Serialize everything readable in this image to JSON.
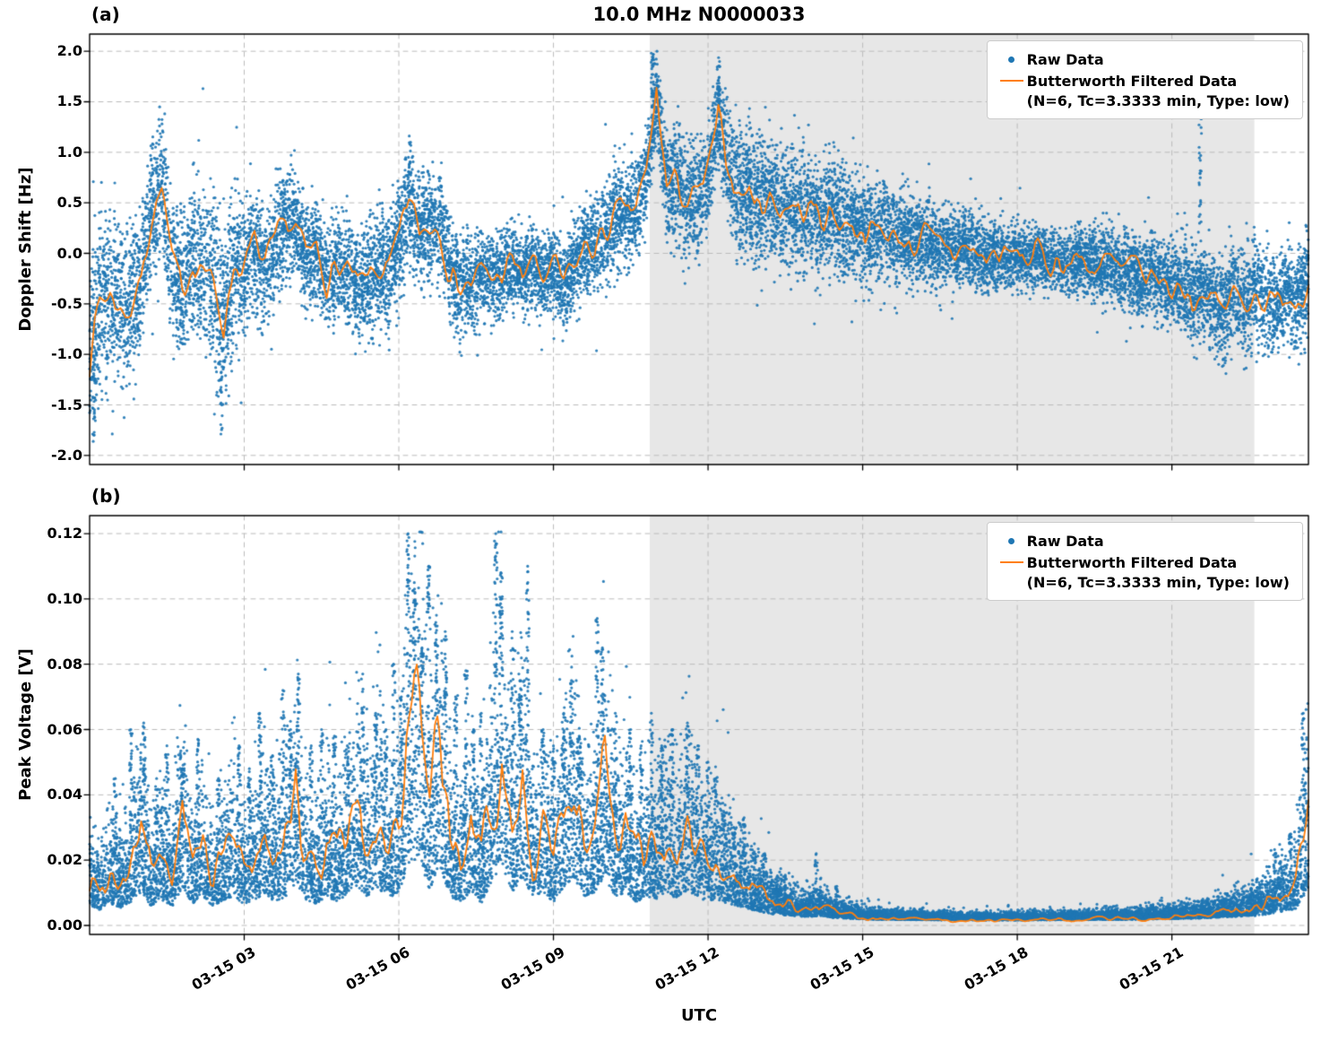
{
  "figure": {
    "title": "10.0 MHz N0000033",
    "panel_a_label": "(a)",
    "panel_b_label": "(b)",
    "colors": {
      "raw": "#1f77b4",
      "filtered": "#ff7f0e",
      "shade": "#e7e7e7",
      "grid": "#bbbbbb",
      "spine": "#000000"
    },
    "legend": {
      "raw_label": "Raw Data",
      "filtered_label": "Butterworth Filtered Data",
      "filtered_sublabel": "(N=6, Tc=3.3333 min, Type: low)"
    },
    "x_axis": {
      "label": "UTC",
      "range_hours": [
        0,
        23.65
      ],
      "tick_hours": [
        3,
        6,
        9,
        12,
        15,
        18,
        21
      ],
      "tick_labels": [
        "03-15 03",
        "03-15 06",
        "03-15 09",
        "03-15 12",
        "03-15 15",
        "03-15 18",
        "03-15 21"
      ]
    }
  },
  "chart_data": [
    {
      "type": "scatter",
      "panel": "a",
      "ylabel": "Doppler Shift [Hz]",
      "ylim": [
        -2.09,
        2.17
      ],
      "yticks": [
        2.0,
        1.5,
        1.0,
        0.5,
        0.0,
        -0.5,
        -1.0,
        -1.5,
        -2.0
      ],
      "ytick_labels": [
        "2.0",
        "1.5",
        "1.0",
        "0.5",
        "0.0",
        "-0.5",
        "-1.0",
        "-1.5",
        "-2.0"
      ],
      "shaded_region_hours": [
        10.87,
        22.6
      ],
      "filtered_series": {
        "name": "Butterworth Filtered Data",
        "x_start_hour": 0,
        "x_step_hour": 0.2,
        "values": [
          -0.95,
          -0.45,
          -0.4,
          -0.55,
          -0.55,
          -0.25,
          0.4,
          0.65,
          -0.1,
          -0.4,
          -0.05,
          -0.1,
          -0.35,
          -0.7,
          -0.1,
          -0.15,
          0.1,
          -0.15,
          0.05,
          0.3,
          0.25,
          -0.05,
          0.05,
          -0.25,
          -0.15,
          -0.2,
          -0.35,
          -0.25,
          -0.15,
          -0.2,
          0.1,
          0.55,
          0.2,
          0.3,
          0.3,
          -0.2,
          -0.3,
          -0.3,
          -0.2,
          -0.25,
          -0.2,
          -0.1,
          -0.2,
          -0.1,
          -0.25,
          -0.15,
          -0.3,
          -0.15,
          0.05,
          0.05,
          0.2,
          0.35,
          0.4,
          0.45,
          0.75,
          1.6,
          0.65,
          0.7,
          0.5,
          0.55,
          0.8,
          1.3,
          0.85,
          0.6,
          0.6,
          0.5,
          0.55,
          0.45,
          0.5,
          0.4,
          0.45,
          0.35,
          0.4,
          0.3,
          0.3,
          0.25,
          0.2,
          0.25,
          0.15,
          0.15,
          0.1,
          0.15,
          0.05,
          0.1,
          0.0,
          0.05,
          0.0,
          -0.05,
          0.0,
          -0.05,
          0.0,
          -0.05,
          0.0,
          -0.1,
          -0.05,
          -0.1,
          -0.05,
          -0.1,
          -0.15,
          -0.1,
          -0.2,
          -0.15,
          -0.25,
          -0.2,
          -0.3,
          -0.35,
          -0.3,
          -0.45,
          -0.35,
          -0.5,
          -0.55,
          -0.4,
          -0.5,
          -0.35,
          -0.45,
          -0.55,
          -0.35,
          -0.45,
          -0.3
        ]
      },
      "raw_series": {
        "name": "Raw Data",
        "clip": [
          -1.92,
          2.0
        ],
        "spread_profile": [
          [
            0,
            0.45
          ],
          [
            0.5,
            0.4
          ],
          [
            1,
            0.35
          ],
          [
            1.5,
            0.35
          ],
          [
            2,
            0.35
          ],
          [
            2.55,
            0.5
          ],
          [
            3,
            0.3
          ],
          [
            3.5,
            0.28
          ],
          [
            4,
            0.25
          ],
          [
            4.5,
            0.25
          ],
          [
            5,
            0.28
          ],
          [
            5.5,
            0.28
          ],
          [
            6,
            0.3
          ],
          [
            6.5,
            0.28
          ],
          [
            7,
            0.25
          ],
          [
            7.5,
            0.22
          ],
          [
            8,
            0.2
          ],
          [
            8.5,
            0.2
          ],
          [
            9,
            0.2
          ],
          [
            9.5,
            0.22
          ],
          [
            10,
            0.25
          ],
          [
            10.5,
            0.25
          ],
          [
            11,
            0.22
          ],
          [
            11.5,
            0.3
          ],
          [
            12.2,
            0.25
          ],
          [
            12.8,
            0.3
          ],
          [
            13.5,
            0.3
          ],
          [
            14,
            0.3
          ],
          [
            15,
            0.25
          ],
          [
            16,
            0.22
          ],
          [
            17,
            0.18
          ],
          [
            18,
            0.15
          ],
          [
            19,
            0.15
          ],
          [
            20,
            0.18
          ],
          [
            21,
            0.2
          ],
          [
            21.8,
            0.25
          ],
          [
            22.3,
            0.25
          ],
          [
            23,
            0.22
          ],
          [
            23.65,
            0.25
          ]
        ],
        "outlier_streaks": [
          [
            0.08,
            -1.9,
            -1.0
          ],
          [
            2.55,
            -1.78,
            -0.85
          ],
          [
            10.92,
            1.55,
            2.0
          ],
          [
            12.2,
            1.45,
            1.9
          ],
          [
            21.55,
            0.25,
            1.35
          ]
        ]
      }
    },
    {
      "type": "scatter",
      "panel": "b",
      "ylabel": "Peak Voltage [V]",
      "ylim": [
        -0.00275,
        0.1255
      ],
      "yticks": [
        0.12,
        0.1,
        0.08,
        0.06,
        0.04,
        0.02,
        0.0
      ],
      "ytick_labels": [
        "0.12",
        "0.10",
        "0.08",
        "0.06",
        "0.04",
        "0.02",
        "0.00"
      ],
      "shaded_region_hours": [
        10.87,
        22.6
      ],
      "filtered_series": {
        "name": "Butterworth Filtered Data",
        "x_start_hour": 0,
        "x_step_hour": 0.2,
        "values": [
          0.015,
          0.012,
          0.018,
          0.014,
          0.02,
          0.03,
          0.015,
          0.022,
          0.015,
          0.035,
          0.018,
          0.025,
          0.015,
          0.022,
          0.025,
          0.018,
          0.022,
          0.028,
          0.02,
          0.025,
          0.038,
          0.022,
          0.018,
          0.025,
          0.02,
          0.028,
          0.035,
          0.025,
          0.035,
          0.022,
          0.03,
          0.06,
          0.065,
          0.03,
          0.055,
          0.025,
          0.02,
          0.03,
          0.018,
          0.04,
          0.053,
          0.03,
          0.045,
          0.025,
          0.03,
          0.02,
          0.035,
          0.045,
          0.025,
          0.03,
          0.045,
          0.025,
          0.03,
          0.02,
          0.025,
          0.022,
          0.03,
          0.022,
          0.032,
          0.025,
          0.02,
          0.022,
          0.018,
          0.015,
          0.012,
          0.01,
          0.008,
          0.007,
          0.006,
          0.005,
          0.005,
          0.006,
          0.004,
          0.0035,
          0.003,
          0.0025,
          0.0022,
          0.002,
          0.002,
          0.0018,
          0.0018,
          0.0017,
          0.0016,
          0.0016,
          0.0015,
          0.0015,
          0.0015,
          0.0015,
          0.0015,
          0.0015,
          0.0015,
          0.0015,
          0.0016,
          0.0016,
          0.0017,
          0.0017,
          0.0018,
          0.0018,
          0.002,
          0.002,
          0.002,
          0.0022,
          0.0022,
          0.0025,
          0.0025,
          0.0028,
          0.003,
          0.003,
          0.0035,
          0.004,
          0.0045,
          0.005,
          0.0055,
          0.006,
          0.007,
          0.009,
          0.011,
          0.013,
          0.03
        ]
      },
      "raw_series": {
        "name": "Raw Data",
        "clip": [
          0.0005,
          0.1205
        ],
        "spike_events": [
          [
            0.5,
            0.045
          ],
          [
            0.8,
            0.06
          ],
          [
            1.05,
            0.062
          ],
          [
            1.3,
            0.045
          ],
          [
            1.5,
            0.055
          ],
          [
            1.8,
            0.048
          ],
          [
            2.1,
            0.057
          ],
          [
            2.5,
            0.045
          ],
          [
            2.9,
            0.055
          ],
          [
            3.1,
            0.048
          ],
          [
            3.3,
            0.065
          ],
          [
            3.55,
            0.052
          ],
          [
            3.75,
            0.072
          ],
          [
            3.9,
            0.06
          ],
          [
            4.05,
            0.077
          ],
          [
            4.3,
            0.055
          ],
          [
            4.5,
            0.06
          ],
          [
            4.75,
            0.058
          ],
          [
            5.0,
            0.055
          ],
          [
            5.3,
            0.077
          ],
          [
            5.55,
            0.065
          ],
          [
            5.75,
            0.06
          ],
          [
            5.9,
            0.08
          ],
          [
            6.05,
            0.07
          ],
          [
            6.18,
            0.12
          ],
          [
            6.3,
            0.105
          ],
          [
            6.45,
            0.085
          ],
          [
            6.58,
            0.11
          ],
          [
            6.73,
            0.095
          ],
          [
            6.9,
            0.09
          ],
          [
            7.1,
            0.07
          ],
          [
            7.3,
            0.078
          ],
          [
            7.45,
            0.06
          ],
          [
            7.6,
            0.065
          ],
          [
            7.88,
            0.12
          ],
          [
            7.98,
            0.108
          ],
          [
            8.2,
            0.09
          ],
          [
            8.35,
            0.075
          ],
          [
            8.5,
            0.11
          ],
          [
            8.8,
            0.06
          ],
          [
            9.0,
            0.055
          ],
          [
            9.2,
            0.065
          ],
          [
            9.35,
            0.075
          ],
          [
            9.5,
            0.058
          ],
          [
            9.85,
            0.094
          ],
          [
            9.95,
            0.085
          ],
          [
            10.2,
            0.065
          ],
          [
            10.5,
            0.06
          ],
          [
            10.7,
            0.055
          ],
          [
            10.9,
            0.065
          ],
          [
            11.1,
            0.055
          ],
          [
            11.3,
            0.06
          ],
          [
            11.6,
            0.062
          ],
          [
            11.8,
            0.055
          ],
          [
            12.0,
            0.05
          ],
          [
            12.15,
            0.045
          ],
          [
            12.3,
            0.035
          ],
          [
            12.5,
            0.03
          ],
          [
            12.7,
            0.033
          ],
          [
            12.9,
            0.025
          ],
          [
            13.1,
            0.022
          ],
          [
            13.5,
            0.015
          ],
          [
            14.1,
            0.022
          ],
          [
            14.5,
            0.012
          ],
          [
            23.0,
            0.022
          ],
          [
            23.3,
            0.028
          ],
          [
            23.55,
            0.065
          ]
        ]
      }
    }
  ]
}
